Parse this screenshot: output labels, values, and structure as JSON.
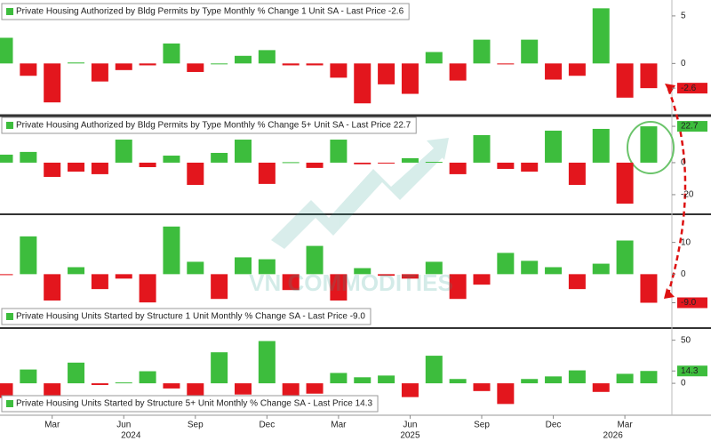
{
  "chart_data": [
    {
      "type": "bar",
      "legend": "top-left",
      "pos_color": "#3dbd3d",
      "neg_color": "#e3161d",
      "series": [
        {
          "name": "Private Housing Authorized by Bldg Permits by Type Monthly % Change 1 Unit SA - Last Price -2.6",
          "values": [
            2.7,
            -1.3,
            -4.1,
            0.1,
            -1.9,
            -0.7,
            -0.2,
            2.1,
            -0.9,
            0,
            0.8,
            1.4,
            -0.2,
            -0.2,
            -1.5,
            -4.2,
            -2.2,
            -3.2,
            1.2,
            -1.8,
            2.5,
            -0.1,
            2.5,
            -1.7,
            -1.3,
            5.8,
            -3.6,
            -2.6
          ]
        }
      ],
      "ylim": [
        -5.3,
        6.3
      ],
      "yticks": [
        5,
        0,
        -2.6
      ]
    },
    {
      "type": "bar",
      "legend": "top-left",
      "pos_color": "#3dbd3d",
      "neg_color": "#e3161d",
      "series": [
        {
          "name": "Private Housing Authorized by Bldg Permits by Type Monthly % Change 5+ Unit SA - Last Price 22.7",
          "values": [
            5,
            6.7,
            -8.9,
            -5.6,
            -7.2,
            14.4,
            -2.8,
            4.4,
            -13.9,
            6.1,
            14.4,
            -13.3,
            0.3,
            -3.3,
            14.4,
            -1,
            -0.5,
            2.8,
            0.5,
            -7.2,
            17.2,
            -3.9,
            -5.6,
            20,
            -13.9,
            21.1,
            -25.6,
            22.7
          ]
        }
      ],
      "ylim": [
        -31.7,
        28.3
      ],
      "yticks": [
        22.7,
        0,
        -20
      ]
    },
    {
      "type": "bar",
      "legend": "bottom-left",
      "pos_color": "#3dbd3d",
      "neg_color": "#e3161d",
      "series": [
        {
          "name": "Private Housing Units Started by Structure 1 Unit Monthly % Change SA - Last Price -9.0",
          "values": [
            -0.3,
            11.9,
            -8.3,
            2.2,
            -4.7,
            -1.4,
            -8.9,
            15,
            3.9,
            -7.8,
            5.3,
            4.7,
            -5,
            8.9,
            -8.3,
            1.9,
            -0.5,
            -1.4,
            3.9,
            -7.8,
            -3.3,
            6.7,
            4.2,
            2.2,
            -4.7,
            3.3,
            10.6,
            -9
          ]
        }
      ],
      "ylim": [
        -16.7,
        18.3
      ],
      "yticks": [
        10,
        0,
        {
          "value": -9,
          "label": "-9.0"
        }
      ]
    },
    {
      "type": "bar",
      "legend": "bottom-left",
      "pos_color": "#3dbd3d",
      "neg_color": "#e3161d",
      "series": [
        {
          "name": "Private Housing Units Started by Structure 5+ Unit Monthly % Change SA - Last Price 14.3",
          "values": [
            -17,
            16,
            -14,
            24,
            -2,
            1,
            14,
            -6,
            -22,
            36,
            -13,
            49,
            -19,
            -12,
            12,
            7,
            9,
            -16,
            32,
            5,
            -9,
            -24,
            5,
            8,
            15,
            -10,
            11,
            14.3
          ]
        }
      ],
      "ylim": [
        -36,
        62
      ],
      "yticks": [
        50,
        14.3,
        0
      ],
      "categories": [
        null,
        null,
        "Mar",
        null,
        null,
        "Jun",
        null,
        null,
        "Sep",
        null,
        null,
        "Dec",
        null,
        null,
        "Mar",
        null,
        null,
        "Jun",
        null,
        null,
        "Sep",
        null,
        null,
        "Dec",
        null,
        null,
        "Mar",
        null
      ],
      "year_labels": [
        "2024",
        "2025",
        "2026"
      ],
      "watermark": "VN COMMODITIES"
    }
  ]
}
